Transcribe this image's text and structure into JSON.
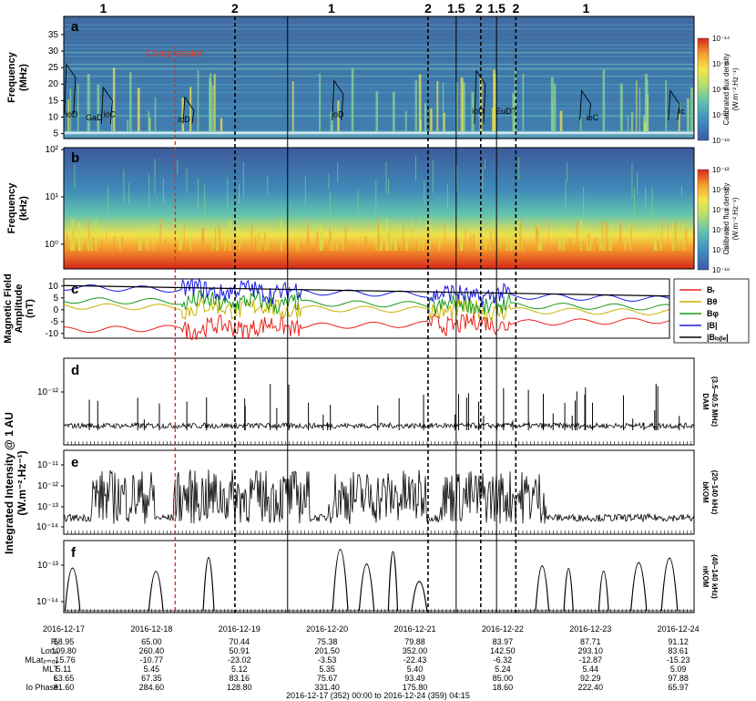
{
  "chart_data": [
    {
      "panel": "a",
      "type": "heatmap",
      "ylabel": "Frequency\n(MHz)",
      "yticks": [
        5,
        10,
        15,
        20,
        25,
        30,
        35
      ],
      "ylim": [
        3.5,
        40.5
      ],
      "colorbar": {
        "label": "Calibrated flux density\n(W.m⁻².Hz⁻¹)",
        "ticks": [
          "10⁻¹⁸",
          "10⁻¹⁷",
          "10⁻¹⁶",
          "10⁻¹⁵",
          "10⁻¹⁴"
        ]
      },
      "annotations": [
        {
          "text": "ioD",
          "x": 0.02,
          "y": 10
        },
        {
          "text": "GaD",
          "x": 0.25,
          "y": 9
        },
        {
          "text": "ioC",
          "x": 0.45,
          "y": 10
        },
        {
          "text": "ioD",
          "x": 1.3,
          "y": 8.5
        },
        {
          "text": "ioD",
          "x": 3.05,
          "y": 10
        },
        {
          "text": "ioD",
          "x": 4.65,
          "y": 11
        },
        {
          "text": "EuD?",
          "x": 4.92,
          "y": 11
        },
        {
          "text": "ioC",
          "x": 5.95,
          "y": 9
        },
        {
          "text": "Ic",
          "x": 7.0,
          "y": 11
        }
      ],
      "region_labels": [
        {
          "text": "1",
          "x": 0.45
        },
        {
          "text": "2",
          "x": 1.95
        },
        {
          "text": "1",
          "x": 3.05
        },
        {
          "text": "2",
          "x": 4.15
        },
        {
          "text": "1.5",
          "x": 4.47
        },
        {
          "text": "2",
          "x": 4.73
        },
        {
          "text": "1.5",
          "x": 4.93
        },
        {
          "text": "2",
          "x": 5.15
        },
        {
          "text": "1",
          "x": 5.95
        }
      ],
      "compression_label": "Compression"
    },
    {
      "panel": "b",
      "type": "heatmap",
      "ylabel": "Frequency\n(kHz)",
      "yscale": "log",
      "yticks": [
        "10⁰",
        "10¹",
        "10²"
      ],
      "ylim": [
        0.3,
        110
      ],
      "colorbar": {
        "label": "Calibrated flux density\n(W.m⁻².Hz⁻¹)",
        "ticks": [
          "10⁻¹⁸",
          "10⁻¹⁷",
          "10⁻¹⁶",
          "10⁻¹⁵",
          "10⁻¹⁴",
          "10⁻¹³"
        ]
      }
    },
    {
      "panel": "c",
      "type": "line",
      "ylabel": "Magnetic Field\nAmplitude\n(nT)",
      "yticks": [
        -10,
        -5,
        0,
        5,
        10
      ],
      "ylim": [
        -12,
        13
      ],
      "legend": "right",
      "series": [
        {
          "name": "Bᵣ",
          "color": "#e8221a",
          "level": -8.5,
          "end": -4.5
        },
        {
          "name": "Bθ",
          "color": "#c8b400",
          "level": 1.5,
          "end": -1
        },
        {
          "name": "Bφ",
          "color": "#1a9a1a",
          "level": 4,
          "end": 1
        },
        {
          "name": "|B|",
          "color": "#1a1ae6",
          "level": 9.5,
          "end": 4.5
        },
        {
          "name": "|Bₗₒᵦₑ|",
          "color": "#000000",
          "start": 10.2,
          "end": 5.8
        }
      ]
    },
    {
      "panel": "d",
      "type": "line",
      "yscale": "log",
      "yticks": [
        "10⁻¹²"
      ],
      "side_label": "DAM\n(3.5–40.5 MHz)"
    },
    {
      "panel": "e",
      "type": "line",
      "yscale": "log",
      "yticks": [
        "10⁻¹¹",
        "10⁻¹²",
        "10⁻¹³",
        "10⁻¹⁴"
      ],
      "side_label": "bKOM\n(20–140 kHz)"
    },
    {
      "panel": "f",
      "type": "line",
      "yscale": "log",
      "yticks": [
        "10⁻¹³",
        "10⁻¹⁴"
      ],
      "side_label": "nKOM\n(40–140 kHz)",
      "bursts_days": [
        0.1,
        1.05,
        1.65,
        3.15,
        3.45,
        3.75,
        4.05,
        5.45,
        5.75,
        6.15,
        6.55,
        6.9
      ]
    }
  ],
  "shared": {
    "intensity_ylabel": "Integrated Intensity @ 1 AU\n(W.m⁻².Hz⁻¹)",
    "x_dates": [
      "2016-12-17",
      "2016-12-18",
      "2016-12-19",
      "2016-12-20",
      "2016-12-21",
      "2016-12-22",
      "2016-12-23",
      "2016-12-24"
    ],
    "compression_day": 1.27,
    "dashed_lines_days": [
      1.95,
      4.15,
      4.75,
      5.15
    ],
    "solid_lines_days": [
      2.55,
      4.47,
      4.93
    ],
    "ephemeris_labels": [
      "Rⱼ",
      "Lonᵢᵢᵢ",
      "MLatⱼᵣₘ₀₉",
      "MLT",
      "L",
      "Io Phase"
    ],
    "ephemeris": [
      [
        "58.95",
        "65.00",
        "70.44",
        "75.38",
        "79.88",
        "83.97",
        "87.71",
        "91.12"
      ],
      [
        "109.80",
        "260.40",
        "50.91",
        "201.50",
        "352.00",
        "142.50",
        "293.10",
        "83.61"
      ],
      [
        "-15.76",
        "-10.77",
        "-23.02",
        "-3.53",
        "-22.43",
        "-6.32",
        "-12.87",
        "-15.23"
      ],
      [
        "5.11",
        "5.45",
        "5.12",
        "5.35",
        "5.40",
        "5.24",
        "5.44",
        "5.09"
      ],
      [
        "63.65",
        "67.35",
        "83.16",
        "75.67",
        "93.49",
        "85.00",
        "92.29",
        "97.88"
      ],
      [
        "81.60",
        "284.60",
        "128.80",
        "331.40",
        "175.80",
        "18.60",
        "222.40",
        "65.97"
      ]
    ],
    "footer": "2016-12-17 (352) 00:00 to 2016-12-24 (359) 04:15"
  }
}
